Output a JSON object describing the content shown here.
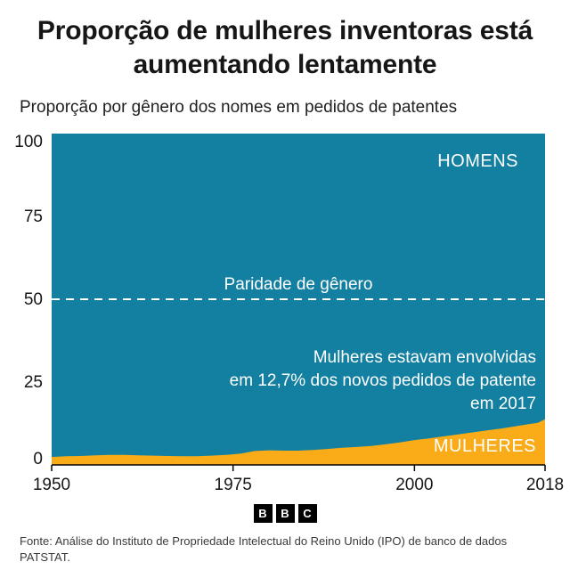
{
  "chart_data": {
    "type": "area",
    "stacked": true,
    "title": "Proporção de mulheres inventoras está aumentando lentamente",
    "subtitle": "Proporção por gênero dos nomes em pedidos de patentes",
    "x": [
      1950,
      1952,
      1954,
      1956,
      1958,
      1960,
      1962,
      1964,
      1966,
      1968,
      1970,
      1972,
      1974,
      1976,
      1978,
      1980,
      1982,
      1984,
      1986,
      1988,
      1990,
      1992,
      1994,
      1996,
      1998,
      2000,
      2002,
      2004,
      2006,
      2008,
      2010,
      2012,
      2014,
      2016,
      2017,
      2018
    ],
    "series": [
      {
        "name": "MULHERES",
        "color": "#FAAB18",
        "values": [
          2.4,
          2.6,
          2.7,
          2.9,
          3.0,
          3.0,
          2.9,
          2.8,
          2.7,
          2.6,
          2.6,
          2.8,
          3.0,
          3.4,
          4.2,
          4.4,
          4.3,
          4.3,
          4.5,
          4.8,
          5.2,
          5.4,
          5.7,
          6.2,
          6.8,
          7.5,
          8.0,
          8.6,
          9.2,
          9.8,
          10.4,
          11.0,
          11.7,
          12.4,
          12.7,
          13.8
        ]
      },
      {
        "name": "HOMENS",
        "color": "#1380A1",
        "values": [
          97.6,
          97.4,
          97.3,
          97.1,
          97.0,
          97.0,
          97.1,
          97.2,
          97.3,
          97.4,
          97.4,
          97.2,
          97.0,
          96.6,
          95.8,
          95.6,
          95.7,
          95.7,
          95.5,
          95.2,
          94.8,
          94.6,
          94.3,
          93.8,
          93.2,
          92.5,
          92.0,
          91.4,
          90.8,
          90.2,
          89.6,
          89.0,
          88.3,
          87.6,
          87.3,
          86.2
        ]
      }
    ],
    "ylim": [
      0,
      100
    ],
    "yticks": [
      0,
      25,
      50,
      75,
      100
    ],
    "xticks": [
      1950,
      1975,
      2000,
      2018
    ],
    "xlabel": "",
    "ylabel": "",
    "grid": false,
    "legend_position": "in-plot-labels",
    "colors": {
      "men": "#1380A1",
      "women": "#FAAB18"
    },
    "annotations": {
      "men_area_label": "HOMENS",
      "women_area_label": "MULHERES",
      "parity_line": {
        "value": 50,
        "label": "Paridade de gênero",
        "style": "dashed-white"
      },
      "note_lines": [
        "Mulheres estavam envolvidas",
        "em 12,7% dos novos pedidos de patente",
        "em 2017"
      ]
    }
  },
  "footer": {
    "logo_letters": [
      "B",
      "B",
      "C"
    ],
    "source": "Fonte: Análise do Instituto de Propriedade Intelectual do Reino Unido (IPO) de banco de dados PATSTAT."
  }
}
